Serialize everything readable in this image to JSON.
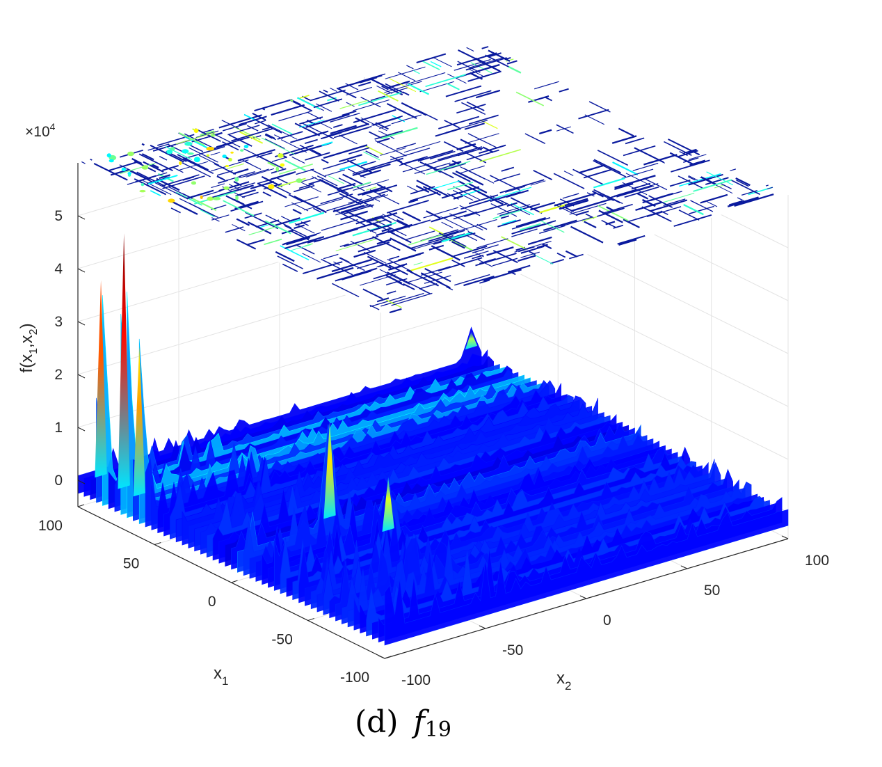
{
  "chart_data": {
    "type": "surface",
    "caption": {
      "prefix": "(d)",
      "func": "f",
      "sub": "19"
    },
    "x1_axis": {
      "label": "x",
      "sub": "1",
      "ticks": [
        -100,
        -50,
        0,
        50,
        100
      ],
      "range": [
        -100,
        100
      ]
    },
    "x2_axis": {
      "label": "x",
      "sub": "2",
      "ticks": [
        -100,
        -50,
        0,
        50,
        100
      ],
      "range": [
        -100,
        100
      ]
    },
    "z_axis": {
      "label": "f(x",
      "label_sub1": "1",
      "label_mid": ",x",
      "label_sub2": "2",
      "label_end": ")",
      "ticks": [
        0,
        1,
        2,
        3,
        4,
        5
      ],
      "multiplier_base": "×10",
      "multiplier_exp": "4",
      "range": [
        -0.5,
        6
      ]
    },
    "colormap": "jet",
    "contour_projection": "top",
    "grid": true,
    "peaks": [
      {
        "x1": 70,
        "x2": -100,
        "z": 5.1
      },
      {
        "x1": 85,
        "x2": -100,
        "z": 4.0
      },
      {
        "x1": 60,
        "x2": -100,
        "z": 3.1
      },
      {
        "x1": -5,
        "x2": -55,
        "z": 2.1
      },
      {
        "x1": -30,
        "x2": -45,
        "z": 1.3
      },
      {
        "x1": 100,
        "x2": 95,
        "z": 0.6
      }
    ]
  }
}
